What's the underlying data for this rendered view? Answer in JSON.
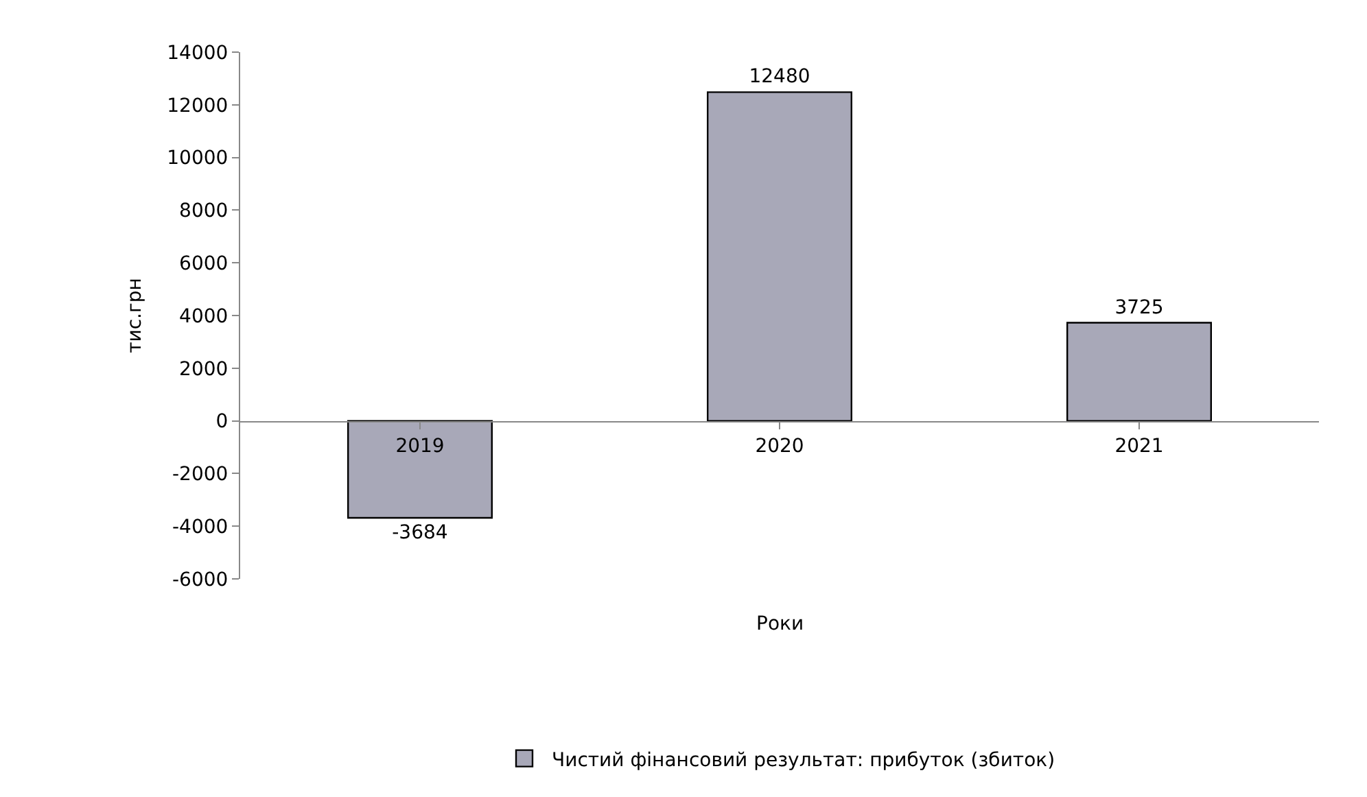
{
  "chart_data": {
    "type": "bar",
    "categories": [
      "2019",
      "2020",
      "2021"
    ],
    "series": [
      {
        "name": "Чистий фінансовий результат: прибуток (збиток)",
        "color": "#a8a8b8",
        "values": [
          -3684,
          12480,
          3725
        ]
      }
    ],
    "xlabel": "Роки",
    "ylabel": "тис.грн",
    "ylim": [
      -6000,
      14000
    ],
    "yticks": [
      -6000,
      -4000,
      -2000,
      0,
      2000,
      4000,
      6000,
      8000,
      10000,
      12000,
      14000
    ],
    "data_labels": true,
    "legend": "bottom"
  }
}
